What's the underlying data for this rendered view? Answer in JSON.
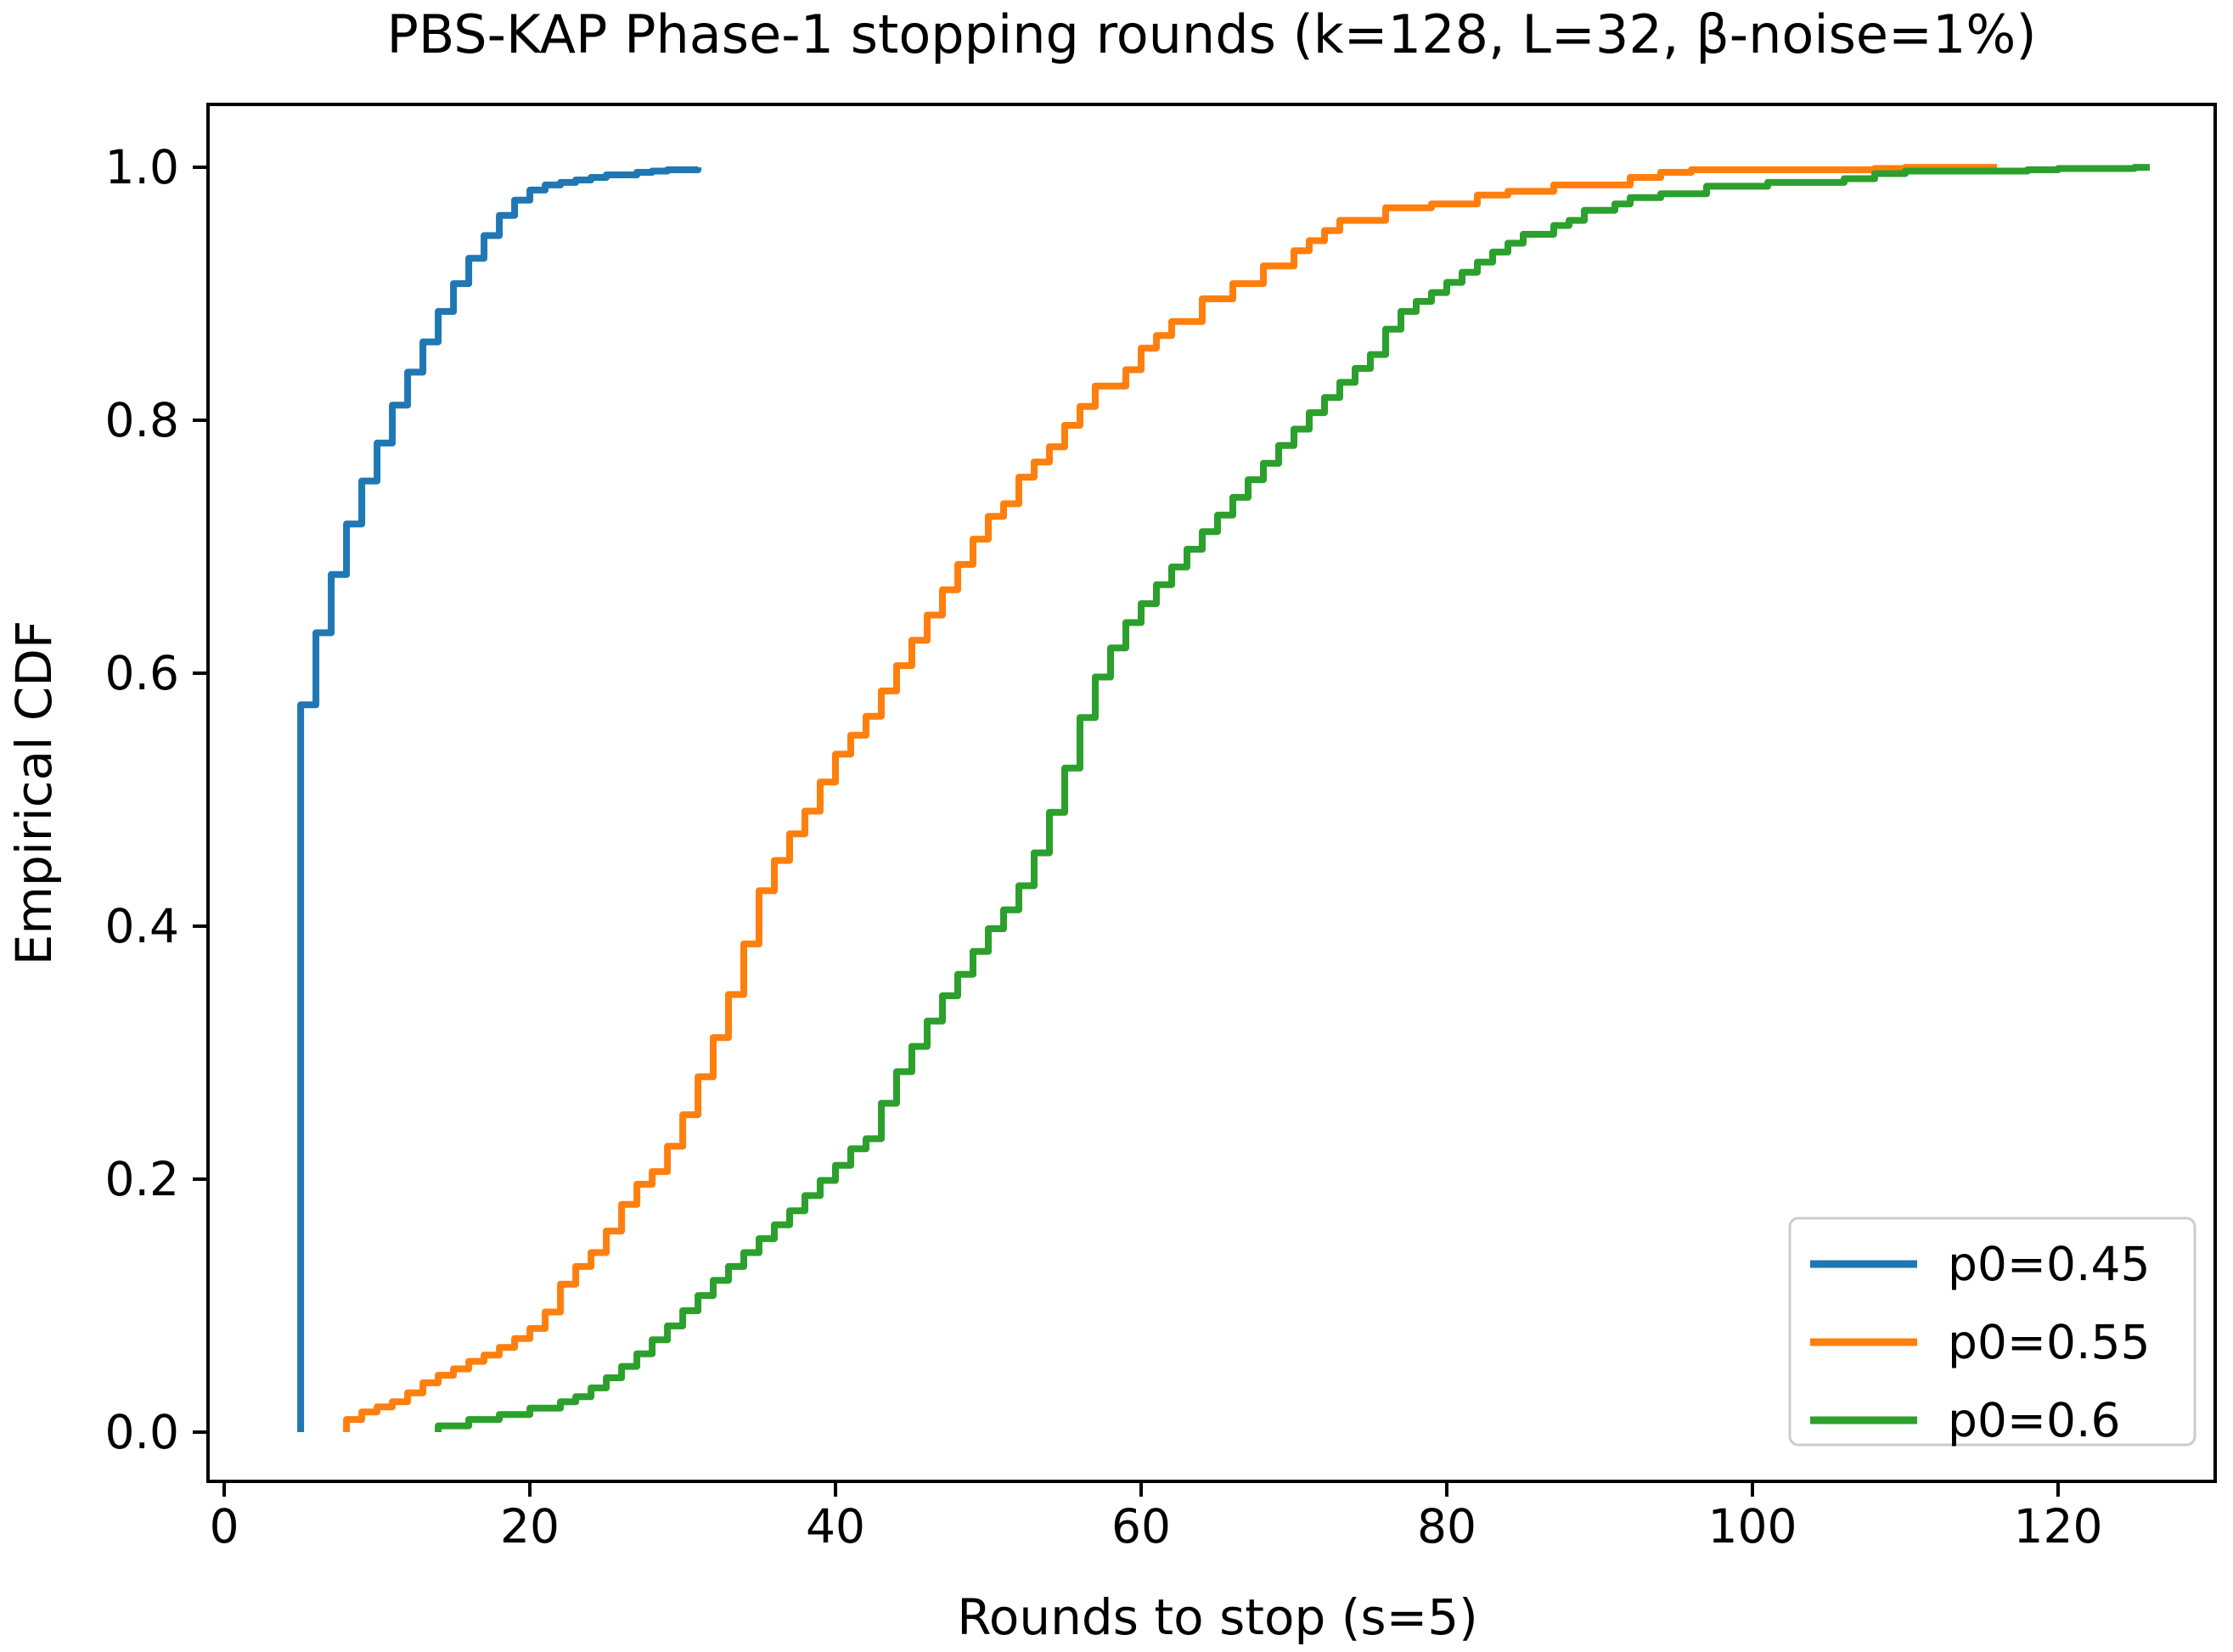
{
  "page": {
    "background": "#ffffff"
  },
  "chart_data": {
    "type": "line",
    "variant": "ecdf-step",
    "title": "PBS-KAP Phase-1 stopping rounds (k=128, L=32, β-noise=1%)",
    "xlabel": "Rounds to stop (s=5)",
    "ylabel": "Empirical CDF",
    "xlim": [
      -1.06,
      130.28
    ],
    "ylim": [
      -0.0389,
      1.0497
    ],
    "xticks": [
      0,
      20,
      40,
      60,
      80,
      100,
      120
    ],
    "yticks": [
      0.0,
      0.2,
      0.4,
      0.6,
      0.8,
      1.0
    ],
    "grid": false,
    "legend_position": "lower right",
    "series": [
      {
        "name": "p0=0.45",
        "color": "#1f77b4",
        "points": [
          [
            5,
            0.575
          ],
          [
            6,
            0.632
          ],
          [
            7,
            0.678
          ],
          [
            8,
            0.718
          ],
          [
            9,
            0.752
          ],
          [
            10,
            0.782
          ],
          [
            11,
            0.812
          ],
          [
            12,
            0.838
          ],
          [
            13,
            0.862
          ],
          [
            14,
            0.886
          ],
          [
            15,
            0.908
          ],
          [
            16,
            0.928
          ],
          [
            17,
            0.946
          ],
          [
            18,
            0.962
          ],
          [
            19,
            0.974
          ],
          [
            20,
            0.982
          ],
          [
            21,
            0.986
          ],
          [
            22,
            0.988
          ],
          [
            23,
            0.99
          ],
          [
            24,
            0.992
          ],
          [
            25,
            0.994
          ],
          [
            27,
            0.996
          ],
          [
            28,
            0.997
          ],
          [
            29,
            0.998
          ],
          [
            31,
            1.0
          ]
        ]
      },
      {
        "name": "p0=0.55",
        "color": "#ff7f0e",
        "points": [
          [
            8,
            0.01
          ],
          [
            9,
            0.016
          ],
          [
            10,
            0.02
          ],
          [
            11,
            0.024
          ],
          [
            12,
            0.031
          ],
          [
            13,
            0.039
          ],
          [
            14,
            0.045
          ],
          [
            15,
            0.05
          ],
          [
            16,
            0.056
          ],
          [
            17,
            0.061
          ],
          [
            18,
            0.067
          ],
          [
            19,
            0.074
          ],
          [
            20,
            0.082
          ],
          [
            21,
            0.095
          ],
          [
            22,
            0.117
          ],
          [
            23,
            0.131
          ],
          [
            24,
            0.142
          ],
          [
            25,
            0.159
          ],
          [
            26,
            0.18
          ],
          [
            27,
            0.196
          ],
          [
            28,
            0.206
          ],
          [
            29,
            0.226
          ],
          [
            30,
            0.251
          ],
          [
            31,
            0.281
          ],
          [
            32,
            0.312
          ],
          [
            33,
            0.346
          ],
          [
            34,
            0.386
          ],
          [
            35,
            0.428
          ],
          [
            36,
            0.452
          ],
          [
            37,
            0.473
          ],
          [
            38,
            0.491
          ],
          [
            39,
            0.514
          ],
          [
            40,
            0.536
          ],
          [
            41,
            0.551
          ],
          [
            42,
            0.566
          ],
          [
            43,
            0.586
          ],
          [
            44,
            0.606
          ],
          [
            45,
            0.626
          ],
          [
            46,
            0.646
          ],
          [
            47,
            0.666
          ],
          [
            48,
            0.686
          ],
          [
            49,
            0.706
          ],
          [
            50,
            0.724
          ],
          [
            51,
            0.734
          ],
          [
            52,
            0.755
          ],
          [
            53,
            0.767
          ],
          [
            54,
            0.779
          ],
          [
            55,
            0.796
          ],
          [
            56,
            0.811
          ],
          [
            57,
            0.827
          ],
          [
            59,
            0.84
          ],
          [
            60,
            0.857
          ],
          [
            61,
            0.867
          ],
          [
            62,
            0.878
          ],
          [
            64,
            0.896
          ],
          [
            66,
            0.908
          ],
          [
            68,
            0.922
          ],
          [
            70,
            0.934
          ],
          [
            71,
            0.942
          ],
          [
            72,
            0.95
          ],
          [
            73,
            0.958
          ],
          [
            76,
            0.968
          ],
          [
            79,
            0.971
          ],
          [
            82,
            0.978
          ],
          [
            84,
            0.981
          ],
          [
            87,
            0.986
          ],
          [
            92,
            0.992
          ],
          [
            94,
            0.996
          ],
          [
            96,
            0.998
          ],
          [
            108,
            0.999
          ],
          [
            110,
            1.0
          ],
          [
            116,
            1.0
          ]
        ]
      },
      {
        "name": "p0=0.6",
        "color": "#2ca02c",
        "points": [
          [
            14,
            0.005
          ],
          [
            16,
            0.01
          ],
          [
            18,
            0.014
          ],
          [
            20,
            0.019
          ],
          [
            22,
            0.024
          ],
          [
            23,
            0.028
          ],
          [
            24,
            0.035
          ],
          [
            25,
            0.043
          ],
          [
            26,
            0.052
          ],
          [
            27,
            0.062
          ],
          [
            28,
            0.073
          ],
          [
            29,
            0.084
          ],
          [
            30,
            0.096
          ],
          [
            31,
            0.108
          ],
          [
            32,
            0.12
          ],
          [
            33,
            0.131
          ],
          [
            34,
            0.142
          ],
          [
            35,
            0.153
          ],
          [
            36,
            0.164
          ],
          [
            37,
            0.175
          ],
          [
            38,
            0.187
          ],
          [
            39,
            0.199
          ],
          [
            40,
            0.211
          ],
          [
            41,
            0.224
          ],
          [
            42,
            0.232
          ],
          [
            43,
            0.26
          ],
          [
            44,
            0.285
          ],
          [
            45,
            0.305
          ],
          [
            46,
            0.325
          ],
          [
            47,
            0.345
          ],
          [
            48,
            0.362
          ],
          [
            49,
            0.38
          ],
          [
            50,
            0.398
          ],
          [
            51,
            0.413
          ],
          [
            52,
            0.432
          ],
          [
            53,
            0.458
          ],
          [
            54,
            0.49
          ],
          [
            55,
            0.525
          ],
          [
            56,
            0.565
          ],
          [
            57,
            0.597
          ],
          [
            58,
            0.62
          ],
          [
            59,
            0.64
          ],
          [
            60,
            0.655
          ],
          [
            61,
            0.67
          ],
          [
            62,
            0.684
          ],
          [
            63,
            0.698
          ],
          [
            64,
            0.712
          ],
          [
            65,
            0.725
          ],
          [
            66,
            0.739
          ],
          [
            67,
            0.753
          ],
          [
            68,
            0.766
          ],
          [
            69,
            0.78
          ],
          [
            70,
            0.793
          ],
          [
            71,
            0.806
          ],
          [
            72,
            0.818
          ],
          [
            73,
            0.83
          ],
          [
            74,
            0.841
          ],
          [
            75,
            0.852
          ],
          [
            76,
            0.872
          ],
          [
            77,
            0.886
          ],
          [
            78,
            0.894
          ],
          [
            79,
            0.901
          ],
          [
            80,
            0.909
          ],
          [
            81,
            0.917
          ],
          [
            82,
            0.925
          ],
          [
            83,
            0.933
          ],
          [
            84,
            0.94
          ],
          [
            85,
            0.947
          ],
          [
            87,
            0.954
          ],
          [
            88,
            0.958
          ],
          [
            89,
            0.966
          ],
          [
            91,
            0.971
          ],
          [
            92,
            0.976
          ],
          [
            94,
            0.979
          ],
          [
            97,
            0.985
          ],
          [
            101,
            0.988
          ],
          [
            106,
            0.991
          ],
          [
            108,
            0.995
          ],
          [
            110,
            0.997
          ],
          [
            118,
            0.998
          ],
          [
            120,
            0.999
          ],
          [
            125,
            1.0
          ],
          [
            126,
            1.0
          ]
        ]
      }
    ]
  }
}
